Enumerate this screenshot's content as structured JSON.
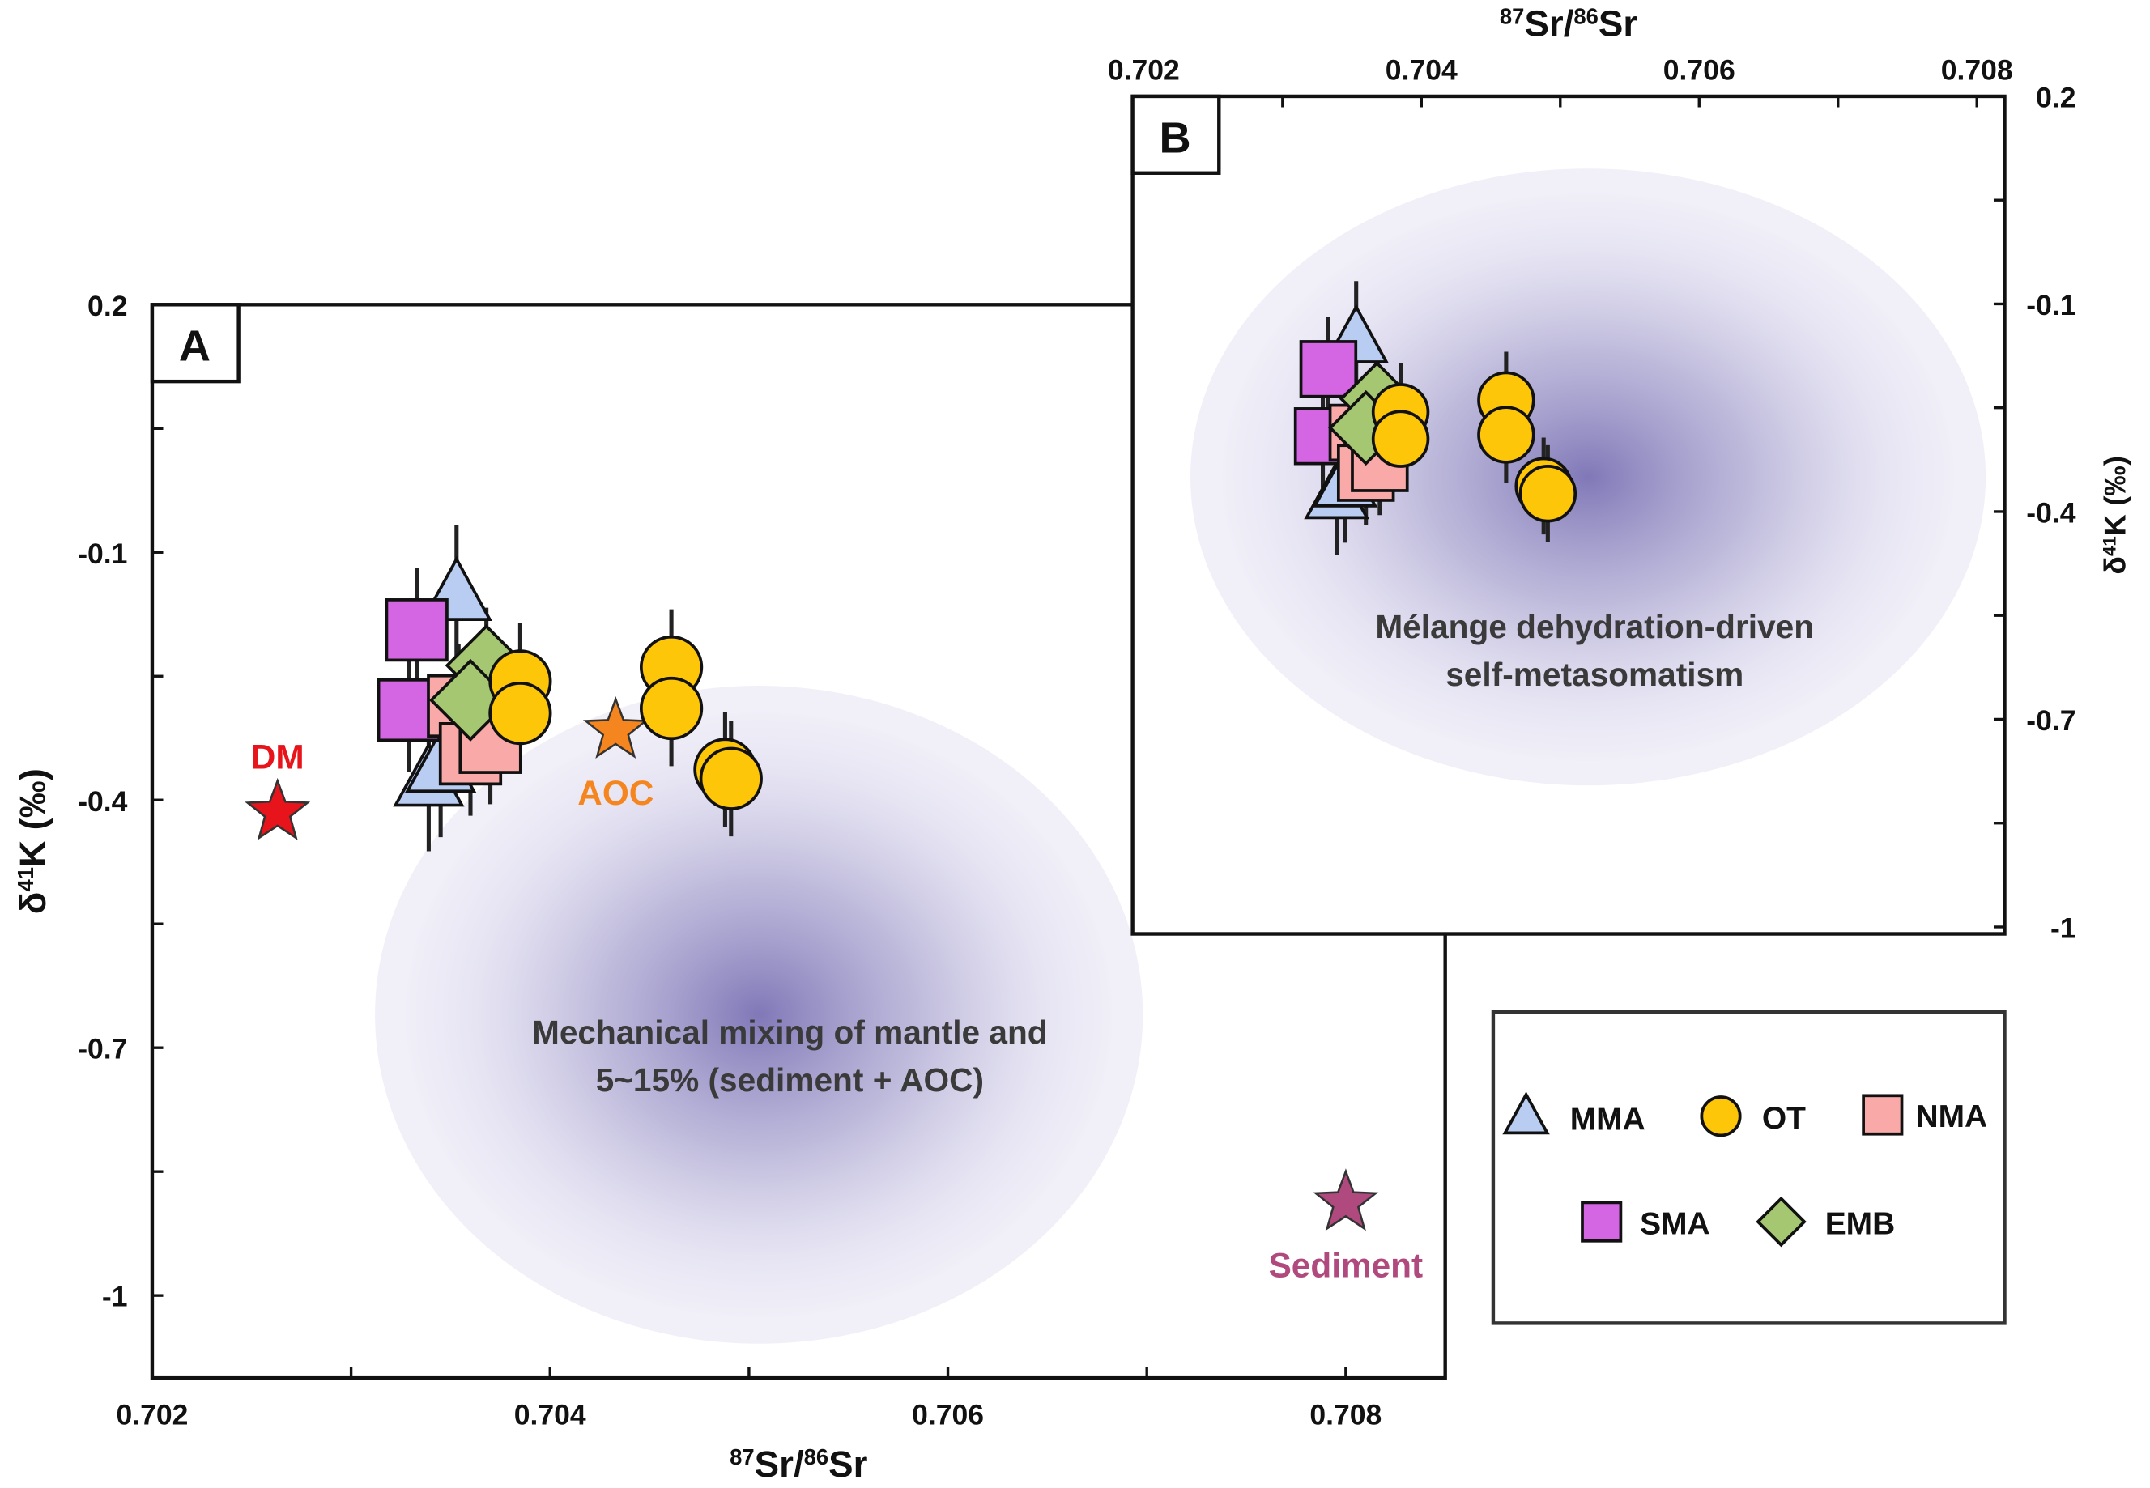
{
  "chart_data": [
    {
      "panel": "A",
      "type": "scatter",
      "xlabel": {
        "sup1": "87",
        "base1": "Sr/",
        "sup2": "86",
        "base2": "Sr"
      },
      "ylabel": {
        "pre": "δ",
        "sup": "41",
        "base": "K (‰)"
      },
      "xlim": [
        0.702,
        0.7085
      ],
      "ylim": [
        -1.1,
        0.2
      ],
      "xticks": [
        0.702,
        0.704,
        0.706,
        0.708
      ],
      "xtick_labels": [
        "0.702",
        "0.704",
        "0.706",
        "0.708"
      ],
      "yticks": [
        0.2,
        -0.1,
        -0.4,
        -0.7,
        -1.0
      ],
      "ytick_labels": [
        "0.2",
        "-0.1",
        "-0.4",
        "-0.7",
        "-1"
      ],
      "region": {
        "center": [
          0.70505,
          -0.66
        ],
        "label_lines": [
          "Mechanical mixing of mantle and",
          "5~15% (sediment + AOC)"
        ]
      },
      "endmembers": [
        {
          "name": "DM",
          "x": 0.70263,
          "y": -0.415,
          "color": "#e8141c"
        },
        {
          "name": "AOC",
          "x": 0.70433,
          "y": -0.316,
          "color": "#f5861f"
        },
        {
          "name": "Sediment",
          "x": 0.708,
          "y": -0.888,
          "color": "#b04a7e"
        }
      ]
    },
    {
      "panel": "B",
      "type": "scatter",
      "xlabel": {
        "sup1": "87",
        "base1": "Sr/",
        "sup2": "86",
        "base2": "Sr"
      },
      "ylabel": {
        "pre": "δ",
        "sup": "41",
        "base": "K (‰)"
      },
      "xlim": [
        0.70192,
        0.7082
      ],
      "ylim": [
        -1.01,
        0.2
      ],
      "xticks": [
        0.702,
        0.704,
        0.706,
        0.708
      ],
      "xtick_labels": [
        "0.702",
        "0.704",
        "0.706",
        "0.708"
      ],
      "yticks": [
        0.2,
        -0.1,
        -0.4,
        -0.7,
        -1.0
      ],
      "ytick_labels": [
        "0.2",
        "-0.1",
        "-0.4",
        "-0.7",
        "-1"
      ],
      "region": {
        "center": [
          0.7052,
          -0.35
        ],
        "label_lines": [
          "Mélange dehydration-driven",
          "self-metasomatism"
        ]
      }
    }
  ],
  "series": [
    {
      "name": "MMA",
      "marker": "triangle",
      "color": "#b9cdf3",
      "points": [
        [
          0.70353,
          -0.152
        ],
        [
          0.70339,
          -0.377
        ],
        [
          0.70345,
          -0.36
        ]
      ],
      "err": 0.085
    },
    {
      "name": "SMA",
      "marker": "square",
      "color": "#d466e3",
      "points": [
        [
          0.70333,
          -0.194
        ],
        [
          0.70329,
          -0.291
        ]
      ],
      "err": 0.075
    },
    {
      "name": "NMA",
      "marker": "square",
      "color": "#f9aaa8",
      "points": [
        [
          0.70354,
          -0.286
        ],
        [
          0.7036,
          -0.344
        ],
        [
          0.7037,
          -0.33
        ]
      ],
      "err": 0.075
    },
    {
      "name": "EMB",
      "marker": "diamond",
      "color": "#a6c772",
      "points": [
        [
          0.70368,
          -0.237
        ],
        [
          0.7036,
          -0.279
        ]
      ],
      "err": 0.07
    },
    {
      "name": "OT",
      "marker": "circle",
      "color": "#fdc609",
      "points": [
        [
          0.70385,
          -0.256
        ],
        [
          0.70385,
          -0.295
        ],
        [
          0.70461,
          -0.239
        ],
        [
          0.70461,
          -0.289
        ],
        [
          0.70488,
          -0.363
        ],
        [
          0.70491,
          -0.374
        ]
      ],
      "err": 0.07
    }
  ],
  "legend": [
    "MMA",
    "OT",
    "NMA",
    "SMA",
    "EMB"
  ],
  "panel_labels": {
    "a": "A",
    "b": "B"
  }
}
